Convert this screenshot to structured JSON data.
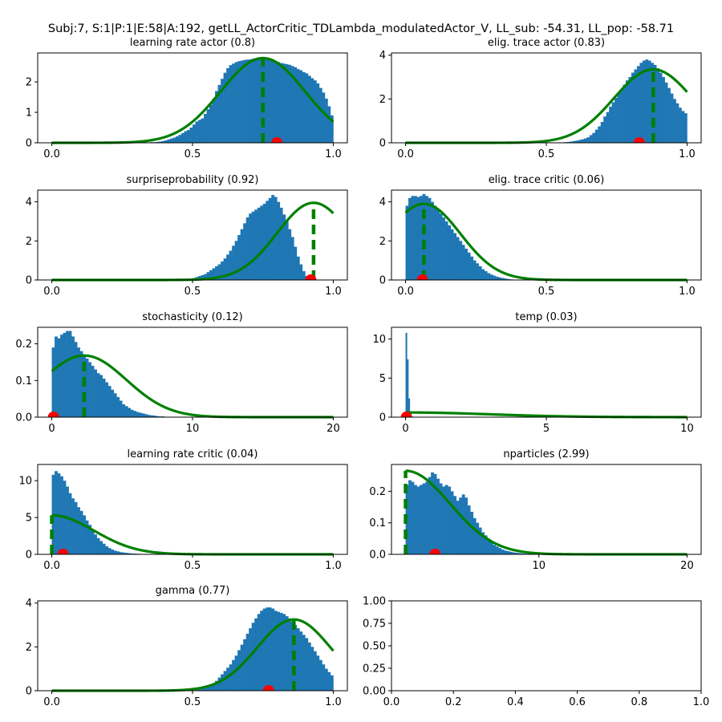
{
  "figure": {
    "suptitle": "Subj:7, S:1|P:1|E:58|A:192, getLL_ActorCritic_TDLambda_modulatedActor_V, LL_sub: -54.31, LL_pop: -58.71",
    "colors": {
      "hist": "#1f77b4",
      "fit": "#008000",
      "marker": "#ff0000",
      "axes": "#000000"
    }
  },
  "chart_data": [
    {
      "type": "bar",
      "title": "learning rate actor (0.8)",
      "xlim": [
        -0.05,
        1.05
      ],
      "ylim": [
        0,
        2.95
      ],
      "xticks": [
        "0.0",
        "0.5",
        "1.0"
      ],
      "yticks": [
        "0",
        "1",
        "2"
      ],
      "hist_range": [
        0,
        1
      ],
      "hist": [
        0,
        0,
        0,
        0,
        0,
        0,
        0,
        0,
        0,
        0,
        0,
        0,
        0,
        0,
        0,
        0,
        0,
        0,
        0,
        0,
        0,
        0,
        0,
        0,
        0,
        0,
        0,
        0,
        0,
        0,
        0,
        0,
        0,
        0.01,
        0.01,
        0.02,
        0.02,
        0.03,
        0.04,
        0.06,
        0.08,
        0.11,
        0.14,
        0.17,
        0.21,
        0.26,
        0.32,
        0.38,
        0.42,
        0.5,
        0.6,
        0.7,
        0.75,
        0.8,
        0.95,
        1.1,
        1.25,
        1.45,
        1.7,
        1.9,
        2.1,
        2.3,
        2.45,
        2.55,
        2.6,
        2.65,
        2.68,
        2.7,
        2.72,
        2.73,
        2.74,
        2.76,
        2.78,
        2.8,
        2.78,
        2.76,
        2.74,
        2.72,
        2.7,
        2.68,
        2.65,
        2.62,
        2.6,
        2.58,
        2.56,
        2.52,
        2.48,
        2.42,
        2.38,
        2.32,
        2.28,
        2.2,
        2.12,
        2.05,
        1.95,
        1.8,
        1.65,
        1.45,
        1.2,
        0.9
      ],
      "fit": {
        "mean": 0.75,
        "sd": 0.15,
        "peak": 2.78
      },
      "dashed_x": 0.75,
      "marker_x": 0.8
    },
    {
      "type": "bar",
      "title": "elig. trace actor (0.83)",
      "xlim": [
        -0.05,
        1.05
      ],
      "ylim": [
        0,
        4.1
      ],
      "xticks": [
        "0.0",
        "0.5",
        "1.0"
      ],
      "yticks": [
        "0",
        "2",
        "4"
      ],
      "hist_range": [
        0,
        1
      ],
      "hist": [
        0,
        0,
        0,
        0,
        0,
        0,
        0,
        0,
        0,
        0,
        0,
        0,
        0,
        0,
        0,
        0,
        0,
        0,
        0,
        0,
        0,
        0,
        0,
        0,
        0,
        0,
        0,
        0,
        0,
        0,
        0,
        0,
        0,
        0,
        0,
        0,
        0,
        0,
        0,
        0,
        0,
        0,
        0,
        0,
        0,
        0,
        0,
        0,
        0,
        0,
        0,
        0,
        0,
        0,
        0,
        0.01,
        0.02,
        0.03,
        0.04,
        0.06,
        0.08,
        0.1,
        0.13,
        0.16,
        0.2,
        0.25,
        0.35,
        0.45,
        0.6,
        0.75,
        0.95,
        1.2,
        1.4,
        1.65,
        1.85,
        2.05,
        2.25,
        2.45,
        2.65,
        2.85,
        3.0,
        3.2,
        3.35,
        3.5,
        3.65,
        3.75,
        3.8,
        3.75,
        3.65,
        3.55,
        3.4,
        3.2,
        3.0,
        2.75,
        2.5,
        2.25,
        2.0,
        1.8,
        1.6,
        1.45,
        1.35
      ],
      "fit": {
        "mean": 0.88,
        "sd": 0.14,
        "peak": 3.35
      },
      "dashed_x": 0.88,
      "marker_x": 0.83
    },
    {
      "type": "bar",
      "title": "surpriseprobability (0.92)",
      "xlim": [
        -0.05,
        1.05
      ],
      "ylim": [
        0,
        4.6
      ],
      "xticks": [
        "0.0",
        "0.5",
        "1.0"
      ],
      "yticks": [
        "0",
        "2",
        "4"
      ],
      "hist_range": [
        0,
        1
      ],
      "hist": [
        0,
        0,
        0,
        0,
        0,
        0,
        0,
        0,
        0,
        0,
        0,
        0,
        0,
        0,
        0,
        0,
        0,
        0,
        0,
        0,
        0,
        0,
        0,
        0,
        0,
        0,
        0,
        0,
        0,
        0,
        0,
        0,
        0,
        0,
        0,
        0,
        0,
        0,
        0,
        0,
        0,
        0,
        0,
        0,
        0,
        0,
        0,
        0,
        0.01,
        0.05,
        0.1,
        0.15,
        0.2,
        0.25,
        0.3,
        0.4,
        0.5,
        0.6,
        0.7,
        0.8,
        0.95,
        1.1,
        1.3,
        1.5,
        1.75,
        2.0,
        2.3,
        2.6,
        2.9,
        3.2,
        3.4,
        3.5,
        3.6,
        3.7,
        3.8,
        3.9,
        4.05,
        4.2,
        4.35,
        4.25,
        4.0,
        3.7,
        3.35,
        3.0,
        2.6,
        2.2,
        1.7,
        1.2,
        0.8,
        0.45,
        0.2,
        0.08,
        0.02,
        0,
        0,
        0,
        0,
        0,
        0,
        0
      ],
      "fit": {
        "mean": 0.93,
        "sd": 0.13,
        "peak": 3.95
      },
      "dashed_x": 0.93,
      "marker_x": 0.92
    },
    {
      "type": "bar",
      "title": "elig. trace critic (0.06)",
      "xlim": [
        -0.05,
        1.05
      ],
      "ylim": [
        0,
        4.6
      ],
      "xticks": [
        "0.0",
        "0.5",
        "1.0"
      ],
      "yticks": [
        "0",
        "2",
        "4"
      ],
      "hist_range": [
        0,
        1
      ],
      "hist": [
        3.8,
        4.2,
        4.3,
        4.3,
        4.25,
        4.3,
        4.4,
        4.3,
        4.2,
        4.0,
        3.8,
        3.6,
        3.4,
        3.2,
        3.0,
        2.8,
        2.6,
        2.4,
        2.2,
        2.0,
        1.8,
        1.6,
        1.4,
        1.2,
        1.0,
        0.85,
        0.7,
        0.55,
        0.45,
        0.35,
        0.28,
        0.22,
        0.17,
        0.13,
        0.1,
        0.07,
        0.05,
        0.03,
        0.02,
        0.01,
        0,
        0,
        0,
        0,
        0,
        0,
        0,
        0,
        0,
        0,
        0,
        0,
        0,
        0,
        0,
        0,
        0,
        0,
        0,
        0,
        0,
        0,
        0,
        0,
        0,
        0,
        0,
        0,
        0,
        0,
        0,
        0,
        0,
        0,
        0,
        0,
        0,
        0,
        0,
        0,
        0,
        0,
        0,
        0,
        0,
        0,
        0,
        0,
        0,
        0,
        0,
        0,
        0,
        0,
        0,
        0,
        0,
        0,
        0,
        0
      ],
      "fit": {
        "mean": 0.065,
        "sd": 0.13,
        "peak": 3.9
      },
      "dashed_x": 0.065,
      "marker_x": 0.06
    },
    {
      "type": "bar",
      "title": "stochasticity (0.12)",
      "xlim": [
        -1,
        21
      ],
      "ylim": [
        0,
        0.245
      ],
      "xticks": [
        "0",
        "10",
        "20"
      ],
      "yticks": [
        "0.0",
        "0.1",
        "0.2"
      ],
      "hist_range": [
        0,
        20
      ],
      "hist": [
        0.19,
        0.22,
        0.215,
        0.225,
        0.23,
        0.235,
        0.235,
        0.22,
        0.205,
        0.19,
        0.18,
        0.165,
        0.16,
        0.15,
        0.14,
        0.13,
        0.12,
        0.115,
        0.105,
        0.095,
        0.085,
        0.075,
        0.065,
        0.055,
        0.045,
        0.035,
        0.03,
        0.025,
        0.02,
        0.017,
        0.014,
        0.012,
        0.01,
        0.008,
        0.006,
        0.005,
        0.004,
        0.003,
        0.002,
        0.002,
        0.001,
        0.001,
        0.001,
        0,
        0,
        0,
        0,
        0,
        0,
        0,
        0,
        0,
        0,
        0,
        0,
        0,
        0,
        0,
        0,
        0,
        0,
        0,
        0,
        0,
        0,
        0,
        0,
        0,
        0,
        0,
        0,
        0,
        0,
        0,
        0,
        0,
        0,
        0,
        0,
        0,
        0,
        0,
        0,
        0,
        0,
        0,
        0,
        0,
        0,
        0,
        0,
        0,
        0,
        0,
        0,
        0,
        0,
        0,
        0,
        0
      ],
      "fit": {
        "mean": 2.3,
        "sd": 3.0,
        "peak": 0.168
      },
      "dashed_x": 2.3,
      "marker_x": 0.12
    },
    {
      "type": "bar",
      "title": "temp (0.03)",
      "xlim": [
        -0.5,
        10.5
      ],
      "ylim": [
        0,
        11.5
      ],
      "xticks": [
        "0",
        "5",
        "10"
      ],
      "yticks": [
        "0",
        "5",
        "10"
      ],
      "hist_range": [
        0,
        10
      ],
      "hist": [
        10.8,
        7.4,
        2.4,
        0.5,
        0.1,
        0.02,
        0,
        0,
        0,
        0,
        0,
        0,
        0,
        0,
        0,
        0,
        0,
        0,
        0,
        0,
        0,
        0,
        0,
        0,
        0,
        0,
        0,
        0,
        0,
        0,
        0,
        0,
        0,
        0,
        0,
        0,
        0,
        0,
        0,
        0,
        0,
        0,
        0,
        0,
        0,
        0,
        0,
        0,
        0,
        0,
        0,
        0,
        0,
        0,
        0,
        0,
        0,
        0,
        0,
        0,
        0,
        0,
        0,
        0,
        0,
        0,
        0,
        0,
        0,
        0,
        0,
        0,
        0,
        0,
        0,
        0,
        0,
        0,
        0,
        0,
        0,
        0,
        0,
        0,
        0,
        0,
        0,
        0,
        0,
        0,
        0,
        0,
        0,
        0,
        0,
        0,
        0,
        0,
        0,
        0,
        0,
        0,
        0,
        0,
        0,
        0,
        0,
        0,
        0,
        0,
        0,
        0,
        0,
        0,
        0,
        0,
        0,
        0,
        0,
        0,
        0,
        0,
        0,
        0,
        0,
        0,
        0,
        0,
        0,
        0,
        0,
        0,
        0,
        0,
        0,
        0,
        0,
        0,
        0,
        0,
        0,
        0,
        0,
        0,
        0,
        0,
        0,
        0,
        0,
        0,
        0,
        0,
        0,
        0,
        0,
        0,
        0,
        0,
        0,
        0,
        0,
        0,
        0,
        0,
        0,
        0,
        0,
        0,
        0,
        0,
        0,
        0,
        0,
        0,
        0,
        0,
        0,
        0,
        0,
        0,
        0,
        0,
        0,
        0,
        0,
        0,
        0,
        0,
        0,
        0,
        0,
        0,
        0,
        0,
        0,
        0,
        0,
        0,
        0,
        0
      ],
      "fit": {
        "mean": 0.0,
        "sd": 3.0,
        "peak": 0.6
      },
      "dashed_x": null,
      "marker_x": 0.03
    },
    {
      "type": "bar",
      "title": "learning rate critic (0.04)",
      "xlim": [
        -0.05,
        1.05
      ],
      "ylim": [
        0,
        12.2
      ],
      "xticks": [
        "0.0",
        "0.5",
        "1.0"
      ],
      "yticks": [
        "0",
        "5",
        "10"
      ],
      "hist_range": [
        0,
        1
      ],
      "hist": [
        10.8,
        11.3,
        11.0,
        10.6,
        10.0,
        9.2,
        8.3,
        7.6,
        7.1,
        6.4,
        5.9,
        5.3,
        4.6,
        4.0,
        3.3,
        2.7,
        2.2,
        1.8,
        1.45,
        1.1,
        0.85,
        0.65,
        0.5,
        0.4,
        0.3,
        0.25,
        0.2,
        0.16,
        0.12,
        0.1,
        0.08,
        0.06,
        0.05,
        0.04,
        0.03,
        0.02,
        0.02,
        0.01,
        0.01,
        0.01,
        0,
        0,
        0,
        0,
        0,
        0,
        0,
        0,
        0,
        0,
        0,
        0,
        0,
        0,
        0,
        0,
        0,
        0,
        0,
        0,
        0,
        0,
        0,
        0,
        0,
        0,
        0,
        0,
        0,
        0,
        0,
        0,
        0,
        0,
        0,
        0,
        0,
        0,
        0,
        0,
        0,
        0,
        0,
        0,
        0,
        0,
        0,
        0,
        0,
        0,
        0,
        0,
        0,
        0,
        0,
        0,
        0,
        0,
        0,
        0
      ],
      "fit": {
        "mean": 0.0,
        "sd": 0.15,
        "peak": 5.3
      },
      "dashed_x": 0.0,
      "marker_x": 0.04
    },
    {
      "type": "bar",
      "title": "nparticles (2.99)",
      "xlim": [
        0.05,
        20.95
      ],
      "ylim": [
        0,
        0.285
      ],
      "xticks": [
        "10",
        "20"
      ],
      "tick_positions": [
        10,
        20
      ],
      "yticks": [
        "0.0",
        "0.1",
        "0.2"
      ],
      "hist_range": [
        1,
        20
      ],
      "hist": [
        0.22,
        0.235,
        0.23,
        0.22,
        0.215,
        0.22,
        0.225,
        0.23,
        0.245,
        0.26,
        0.255,
        0.24,
        0.225,
        0.215,
        0.22,
        0.215,
        0.2,
        0.185,
        0.17,
        0.18,
        0.19,
        0.18,
        0.155,
        0.135,
        0.115,
        0.1,
        0.085,
        0.07,
        0.06,
        0.05,
        0.04,
        0.03,
        0.025,
        0.02,
        0.015,
        0.012,
        0.01,
        0.008,
        0.006,
        0.005,
        0.004,
        0.003,
        0.002,
        0.002,
        0.001,
        0.001,
        0.001,
        0,
        0,
        0,
        0,
        0,
        0,
        0,
        0,
        0,
        0,
        0,
        0,
        0,
        0,
        0,
        0,
        0,
        0,
        0,
        0,
        0,
        0,
        0,
        0,
        0,
        0,
        0,
        0,
        0,
        0,
        0,
        0,
        0,
        0,
        0,
        0,
        0,
        0,
        0,
        0,
        0,
        0,
        0,
        0,
        0,
        0,
        0,
        0,
        0,
        0,
        0,
        0,
        0
      ],
      "fit": {
        "mean": 1.0,
        "sd": 3.0,
        "peak": 0.265
      },
      "dashed_x": 1.0,
      "marker_x": 2.99
    },
    {
      "type": "bar",
      "title": "gamma (0.77)",
      "xlim": [
        -0.05,
        1.05
      ],
      "ylim": [
        0,
        4.1
      ],
      "xticks": [
        "0.0",
        "0.5",
        "1.0"
      ],
      "yticks": [
        "0",
        "2",
        "4"
      ],
      "hist_range": [
        0,
        1
      ],
      "hist": [
        0,
        0,
        0,
        0,
        0,
        0,
        0,
        0,
        0,
        0,
        0,
        0,
        0,
        0,
        0,
        0,
        0,
        0,
        0,
        0,
        0,
        0,
        0,
        0,
        0,
        0,
        0,
        0,
        0,
        0,
        0,
        0,
        0,
        0,
        0,
        0,
        0,
        0,
        0,
        0,
        0,
        0,
        0,
        0,
        0,
        0,
        0,
        0,
        0,
        0.01,
        0.02,
        0.04,
        0.06,
        0.09,
        0.12,
        0.18,
        0.25,
        0.33,
        0.45,
        0.6,
        0.75,
        0.9,
        1.05,
        1.2,
        1.4,
        1.6,
        1.85,
        2.1,
        2.35,
        2.6,
        2.85,
        3.1,
        3.3,
        3.5,
        3.65,
        3.75,
        3.8,
        3.8,
        3.75,
        3.65,
        3.6,
        3.55,
        3.5,
        3.4,
        3.3,
        3.15,
        3.0,
        2.85,
        2.7,
        2.55,
        2.4,
        2.2,
        2.0,
        1.8,
        1.6,
        1.4,
        1.2,
        1.0,
        0.85,
        0.7
      ],
      "fit": {
        "mean": 0.86,
        "sd": 0.13,
        "peak": 3.25
      },
      "dashed_x": 0.86,
      "marker_x": 0.77
    },
    {
      "type": "empty",
      "title": "",
      "xlim": [
        0,
        1
      ],
      "ylim": [
        0,
        1
      ],
      "xticks": [
        "0.0",
        "0.2",
        "0.4",
        "0.6",
        "0.8",
        "1.0"
      ],
      "yticks": [
        "0.00",
        "0.25",
        "0.50",
        "0.75",
        "1.00"
      ]
    }
  ]
}
